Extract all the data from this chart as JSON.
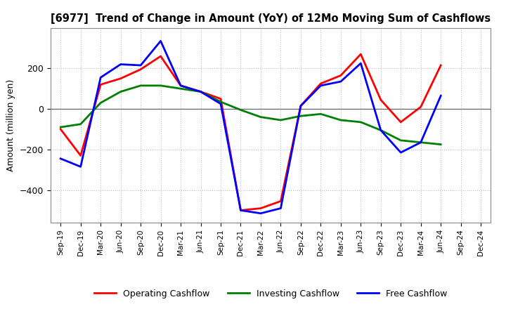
{
  "title": "[6977]  Trend of Change in Amount (YoY) of 12Mo Moving Sum of Cashflows",
  "ylabel": "Amount (million yen)",
  "x_labels": [
    "Sep-19",
    "Dec-19",
    "Mar-20",
    "Jun-20",
    "Sep-20",
    "Dec-20",
    "Mar-21",
    "Jun-21",
    "Sep-21",
    "Dec-21",
    "Mar-22",
    "Jun-22",
    "Sep-22",
    "Dec-22",
    "Mar-23",
    "Jun-23",
    "Sep-23",
    "Dec-23",
    "Mar-24",
    "Jun-24",
    "Sep-24",
    "Dec-24"
  ],
  "operating": [
    -100,
    -230,
    120,
    150,
    195,
    260,
    115,
    85,
    50,
    -500,
    -490,
    -455,
    15,
    125,
    165,
    270,
    45,
    -65,
    10,
    215,
    null,
    null
  ],
  "investing": [
    -90,
    -75,
    30,
    85,
    115,
    115,
    100,
    85,
    35,
    -5,
    -40,
    -55,
    -35,
    -25,
    -55,
    -65,
    -105,
    -155,
    -165,
    -175,
    null,
    null
  ],
  "free": [
    -245,
    -285,
    155,
    220,
    215,
    335,
    115,
    85,
    25,
    -500,
    -515,
    -490,
    15,
    115,
    135,
    225,
    -105,
    -215,
    -165,
    65,
    null,
    null
  ],
  "ylim": [
    -560,
    400
  ],
  "yticks": [
    -400,
    -200,
    0,
    200
  ],
  "colors": {
    "operating": "#ff0000",
    "investing": "#008000",
    "free": "#0000ff"
  },
  "legend_labels": [
    "Operating Cashflow",
    "Investing Cashflow",
    "Free Cashflow"
  ],
  "background_color": "#ffffff",
  "grid_color": "#bbbbbb"
}
